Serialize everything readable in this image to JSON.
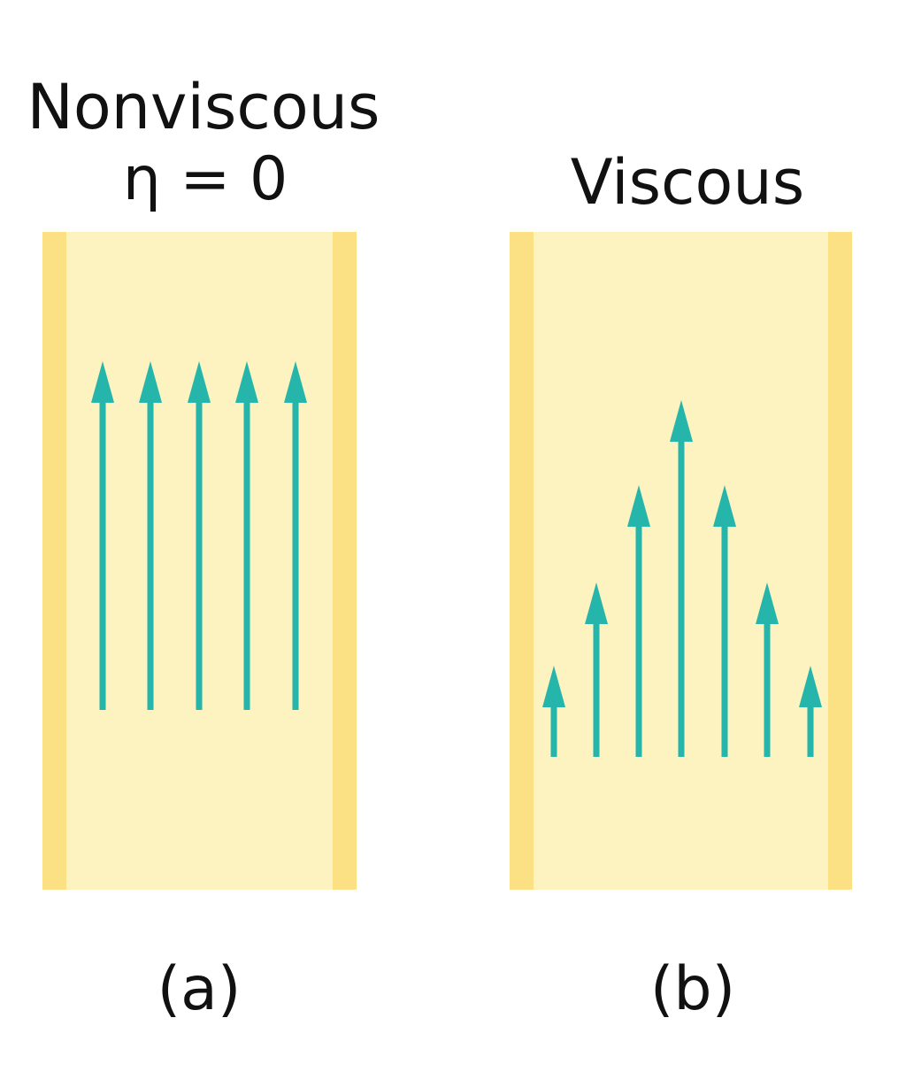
{
  "panels": [
    {
      "title": "Nonviscous",
      "subtitle": "η = 0",
      "label": "(a)"
    },
    {
      "title": "Viscous",
      "label": "(b)"
    }
  ]
}
